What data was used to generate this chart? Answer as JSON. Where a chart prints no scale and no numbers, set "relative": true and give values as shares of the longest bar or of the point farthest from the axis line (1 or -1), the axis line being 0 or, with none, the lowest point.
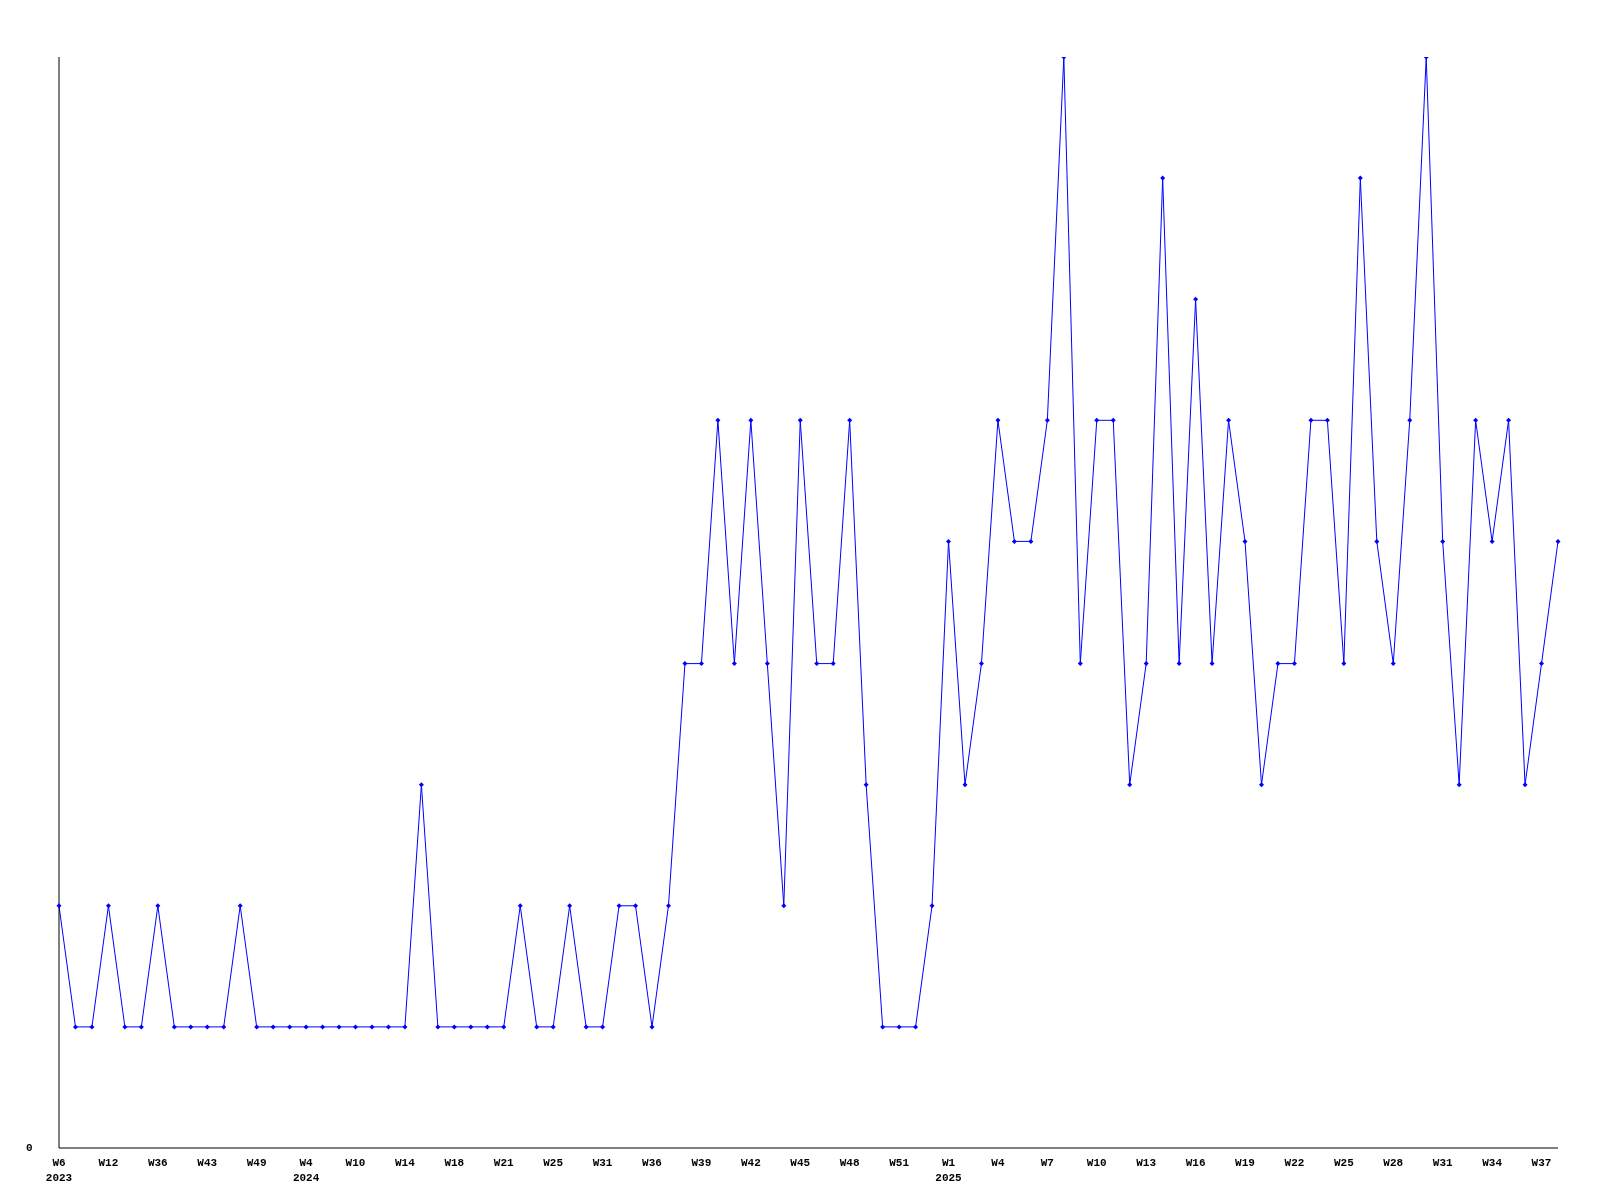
{
  "chart_data": {
    "type": "line",
    "relative": true,
    "color": "#0000ff",
    "marker": "diamond",
    "annotations": [
      "0"
    ],
    "categories": [
      "W6\n2023",
      null,
      null,
      "W12",
      null,
      null,
      "W36",
      null,
      null,
      "W43",
      null,
      null,
      "W49",
      null,
      null,
      "W4\n2024",
      null,
      null,
      "W10",
      null,
      null,
      "W14",
      null,
      null,
      "W18",
      null,
      null,
      "W21",
      null,
      null,
      "W25",
      null,
      null,
      "W31",
      null,
      null,
      "W36",
      null,
      null,
      "W39",
      null,
      null,
      "W42",
      null,
      null,
      "W45",
      null,
      null,
      "W48",
      null,
      null,
      "W51",
      null,
      null,
      "W1\n2025",
      null,
      null,
      "W4",
      null,
      null,
      "W7",
      null,
      null,
      "W10",
      null,
      null,
      "W13",
      null,
      null,
      "W16",
      null,
      null,
      "W19",
      null,
      null,
      "W22",
      null,
      null,
      "W25",
      null,
      null,
      "W28",
      null,
      null,
      "W31",
      null,
      null,
      "W34",
      null,
      null,
      "W37",
      null
    ],
    "values": [
      0.222,
      0.111,
      0.111,
      0.222,
      0.111,
      0.111,
      0.222,
      0.111,
      0.111,
      0.111,
      0.111,
      0.222,
      0.111,
      0.111,
      0.111,
      0.111,
      0.111,
      0.111,
      0.111,
      0.111,
      0.111,
      0.111,
      0.333,
      0.111,
      0.111,
      0.111,
      0.111,
      0.111,
      0.222,
      0.111,
      0.111,
      0.222,
      0.111,
      0.111,
      0.222,
      0.222,
      0.111,
      0.222,
      0.444,
      0.444,
      0.667,
      0.444,
      0.667,
      0.444,
      0.222,
      0.667,
      0.444,
      0.444,
      0.667,
      0.333,
      0.111,
      0.111,
      0.111,
      0.222,
      0.556,
      0.333,
      0.444,
      0.667,
      0.556,
      0.556,
      0.667,
      1,
      0.444,
      0.667,
      0.667,
      0.333,
      0.444,
      0.889,
      0.444,
      0.778,
      0.444,
      0.667,
      0.556,
      0.333,
      0.444,
      0.444,
      0.667,
      0.667,
      0.444,
      0.889,
      0.556,
      0.444,
      0.667,
      1,
      0.556,
      0.333,
      0.667,
      0.556,
      0.667,
      0.333,
      0.444,
      0.556
    ]
  }
}
